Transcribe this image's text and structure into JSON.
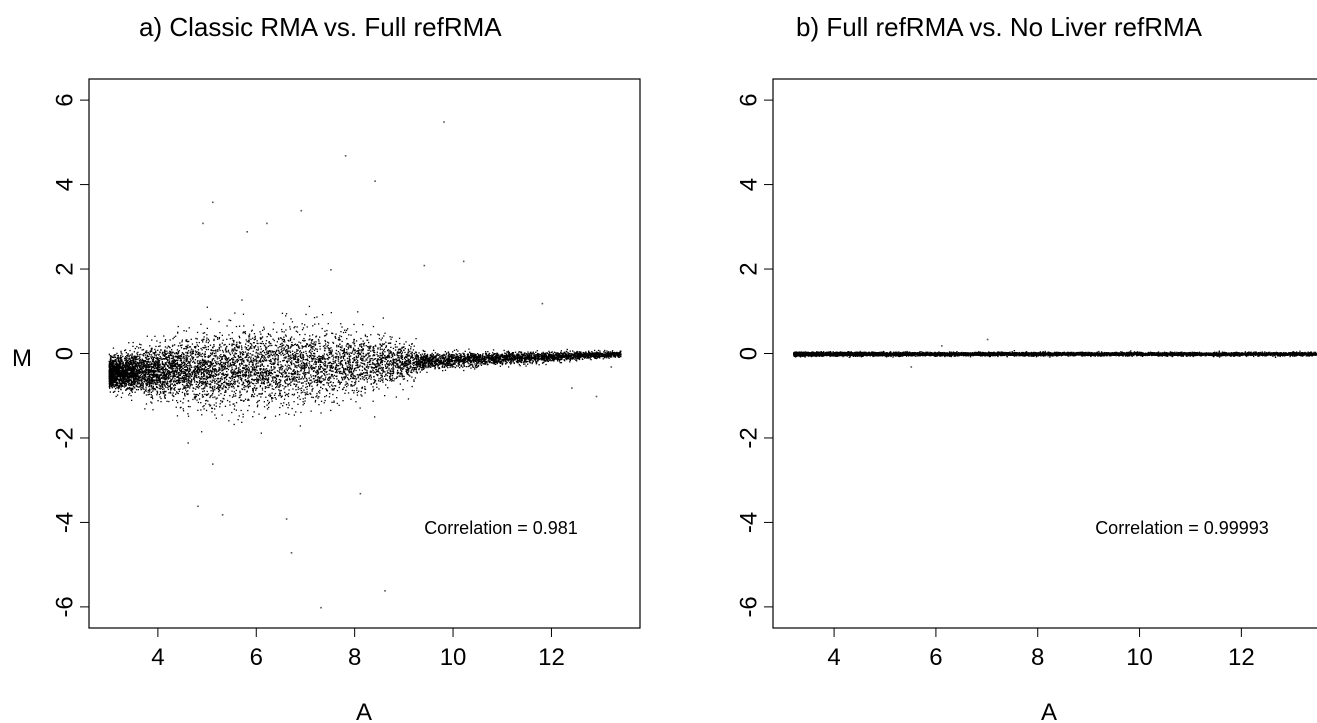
{
  "chart_data": [
    {
      "type": "scatter",
      "title": "a) Classic RMA vs. Full refRMA",
      "xlabel": "A",
      "ylabel": "M",
      "xticks": [
        "4",
        "6",
        "8",
        "10",
        "12"
      ],
      "yticks": [
        "-6",
        "-4",
        "-2",
        "0",
        "2",
        "4",
        "6"
      ],
      "xlim": [
        2.6,
        13.8
      ],
      "ylim": [
        -6.5,
        6.5
      ],
      "annotation": "Correlation = 0.981",
      "point_color": "#000000",
      "distribution": {
        "a_range": [
          3.0,
          13.4
        ],
        "mean_m_at_low_a": -0.45,
        "mean_m_at_high_a": 0.0,
        "core_spread_sd": 0.2,
        "outliers": [
          {
            "a": 9.8,
            "m": 5.5
          },
          {
            "a": 7.8,
            "m": 4.7
          },
          {
            "a": 8.4,
            "m": 4.1
          },
          {
            "a": 5.1,
            "m": 3.6
          },
          {
            "a": 4.9,
            "m": 3.1
          },
          {
            "a": 6.9,
            "m": 3.4
          },
          {
            "a": 5.8,
            "m": 2.9
          },
          {
            "a": 6.2,
            "m": 3.1
          },
          {
            "a": 8.1,
            "m": -3.3
          },
          {
            "a": 6.6,
            "m": -3.9
          },
          {
            "a": 6.7,
            "m": -4.7
          },
          {
            "a": 7.3,
            "m": -6.0
          },
          {
            "a": 8.6,
            "m": -5.6
          },
          {
            "a": 5.3,
            "m": -3.8
          },
          {
            "a": 4.8,
            "m": -3.6
          },
          {
            "a": 5.1,
            "m": -2.6
          },
          {
            "a": 4.6,
            "m": -2.1
          },
          {
            "a": 10.2,
            "m": 2.2
          },
          {
            "a": 11.8,
            "m": 1.2
          },
          {
            "a": 12.4,
            "m": -0.8
          },
          {
            "a": 12.9,
            "m": -1.0
          },
          {
            "a": 13.2,
            "m": -0.3
          },
          {
            "a": 9.4,
            "m": 2.1
          },
          {
            "a": 7.5,
            "m": 2.0
          }
        ]
      }
    },
    {
      "type": "scatter",
      "title": "b) Full refRMA vs. No Liver refRMA",
      "xlabel": "A",
      "ylabel": "",
      "xticks": [
        "4",
        "6",
        "8",
        "10",
        "12"
      ],
      "yticks": [
        "-6",
        "-4",
        "-2",
        "0",
        "2",
        "4",
        "6"
      ],
      "xlim": [
        2.8,
        13.8
      ],
      "ylim": [
        -6.5,
        6.5
      ],
      "annotation": "Correlation = 0.99993",
      "point_color": "#000000",
      "distribution": {
        "a_range": [
          3.2,
          13.5
        ],
        "mean_m_at_low_a": 0.0,
        "mean_m_at_high_a": 0.0,
        "core_spread_sd": 0.02,
        "outliers": [
          {
            "a": 7.0,
            "m": 0.35
          },
          {
            "a": 5.5,
            "m": -0.3
          },
          {
            "a": 6.1,
            "m": 0.2
          }
        ]
      }
    }
  ]
}
